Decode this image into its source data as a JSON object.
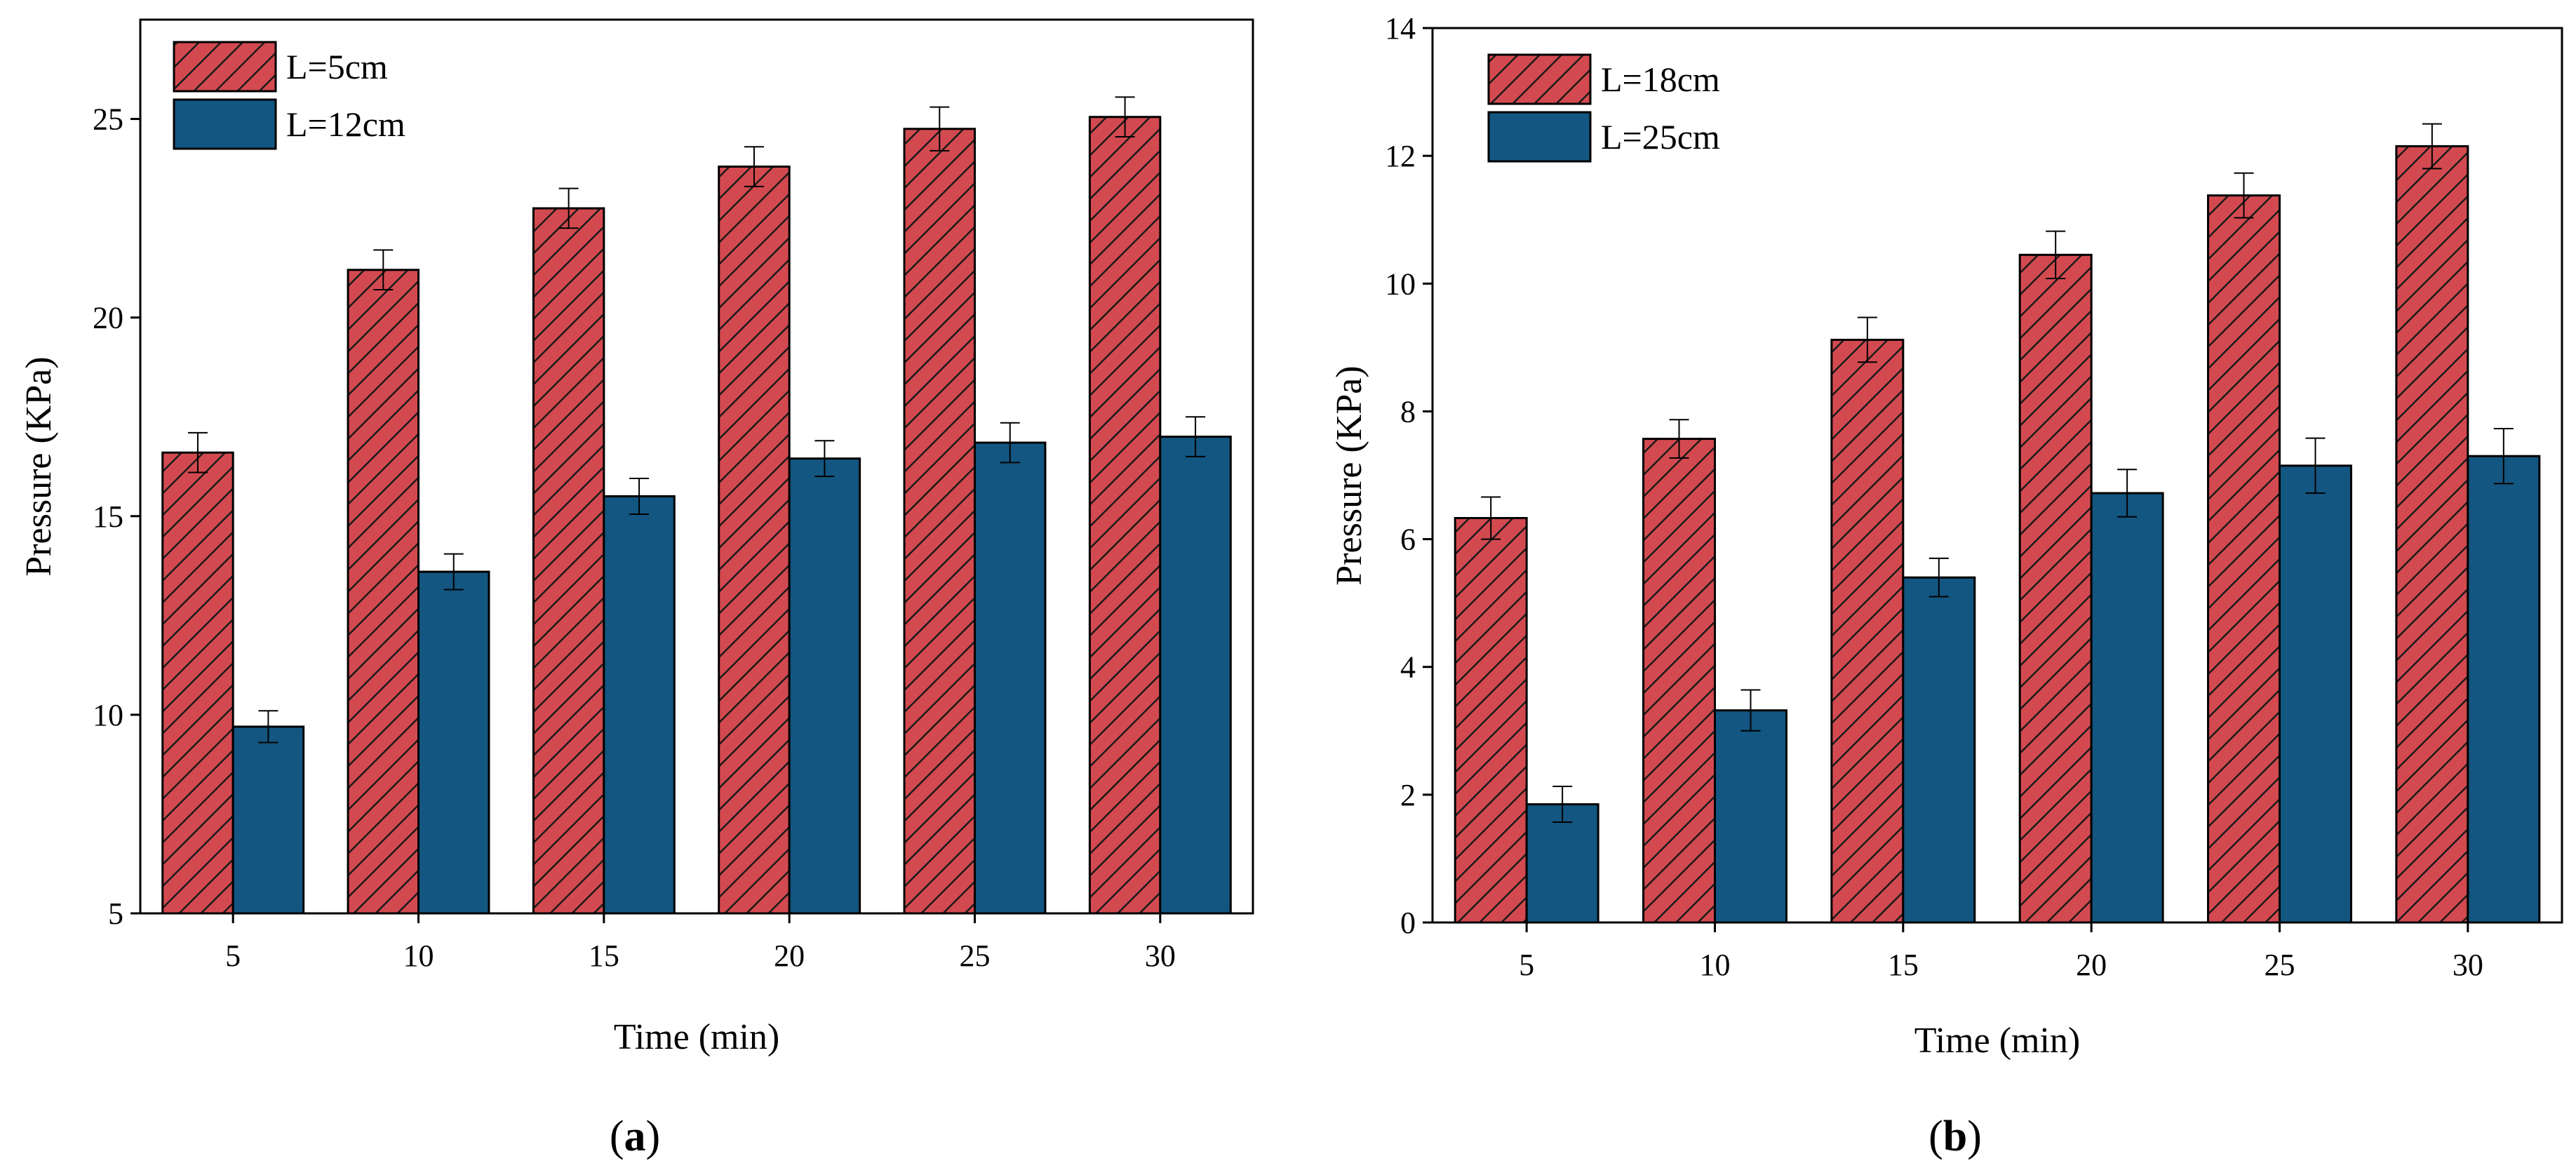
{
  "chart_data": [
    {
      "type": "bar",
      "panel_label": "a",
      "xlabel": "Time (min)",
      "ylabel": "Pressure (KPa)",
      "categories": [
        "5",
        "10",
        "15",
        "20",
        "25",
        "30"
      ],
      "ylim": [
        5,
        27.5
      ],
      "yticks": [
        "5",
        "10",
        "15",
        "20",
        "25"
      ],
      "legend_position": "top-left",
      "series": [
        {
          "name": "L=5cm",
          "color": "#d24a50",
          "hatch": true,
          "values": [
            16.6,
            21.2,
            22.75,
            23.8,
            24.75,
            25.05
          ],
          "errors": [
            0.5,
            0.5,
            0.5,
            0.5,
            0.55,
            0.5
          ]
        },
        {
          "name": "L=12cm",
          "color": "#135681",
          "hatch": false,
          "values": [
            9.7,
            13.6,
            15.5,
            16.45,
            16.85,
            17.0
          ],
          "errors": [
            0.4,
            0.45,
            0.45,
            0.45,
            0.5,
            0.5
          ]
        }
      ]
    },
    {
      "type": "bar",
      "panel_label": "b",
      "xlabel": "Time (min)",
      "ylabel": "Pressure (KPa)",
      "categories": [
        "5",
        "10",
        "15",
        "20",
        "25",
        "30"
      ],
      "ylim": [
        0,
        14
      ],
      "yticks": [
        "0",
        "2",
        "4",
        "6",
        "8",
        "10",
        "12",
        "14"
      ],
      "legend_position": "top-left",
      "series": [
        {
          "name": "L=18cm",
          "color": "#d24a50",
          "hatch": true,
          "values": [
            6.33,
            7.57,
            9.12,
            10.45,
            11.38,
            12.15
          ],
          "errors": [
            0.33,
            0.3,
            0.35,
            0.37,
            0.35,
            0.35
          ]
        },
        {
          "name": "L=25cm",
          "color": "#135681",
          "hatch": false,
          "values": [
            1.85,
            3.32,
            5.4,
            6.72,
            7.15,
            7.3
          ],
          "errors": [
            0.28,
            0.32,
            0.3,
            0.37,
            0.43,
            0.43
          ]
        }
      ]
    }
  ]
}
